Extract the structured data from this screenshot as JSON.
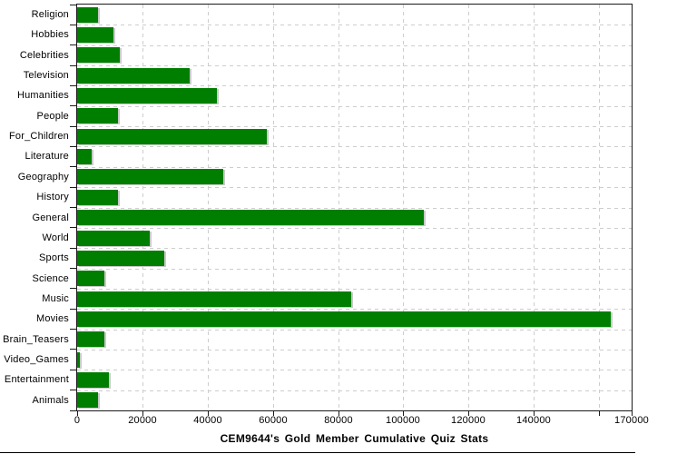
{
  "title": "CEM9644's Gold Member Cumulative Quiz Stats",
  "colors": {
    "bar": "#007e00",
    "bar_shadow": "#c9c9c9",
    "grid": "#cdcdcd",
    "axis": "#1a1a1a",
    "background": "#ffffff"
  },
  "chart_data": {
    "type": "bar",
    "orientation": "horizontal",
    "title": "CEM9644's Gold Member Cumulative Quiz Stats",
    "xlabel": "",
    "ylabel": "",
    "categories": [
      "Religion",
      "Hobbies",
      "Celebrities",
      "Television",
      "Humanities",
      "People",
      "For_Children",
      "Literature",
      "Geography",
      "History",
      "General",
      "World",
      "Sports",
      "Science",
      "Music",
      "Movies",
      "Brain_Teasers",
      "Video_Games",
      "Entertainment",
      "Animals"
    ],
    "values": [
      6400,
      11100,
      13100,
      34400,
      42800,
      12500,
      58100,
      4400,
      44700,
      12500,
      106400,
      22200,
      26700,
      8300,
      83900,
      163600,
      8300,
      800,
      9700,
      6400
    ],
    "xlim": [
      0,
      170000
    ],
    "x_ticks": [
      0,
      20000,
      40000,
      60000,
      80000,
      100000,
      120000,
      140000,
      160000,
      170000
    ],
    "x_tick_labels": [
      {
        "value": 0,
        "label": "0"
      },
      {
        "value": 20000,
        "label": "20000"
      },
      {
        "value": 40000,
        "label": "40000"
      },
      {
        "value": 60000,
        "label": "60000"
      },
      {
        "value": 80000,
        "label": "80000"
      },
      {
        "value": 100000,
        "label": "100000"
      },
      {
        "value": 120000,
        "label": "120000"
      },
      {
        "value": 140000,
        "label": "140000"
      },
      {
        "value": 170000,
        "label": "170000"
      }
    ],
    "grid": true,
    "legend": false
  }
}
